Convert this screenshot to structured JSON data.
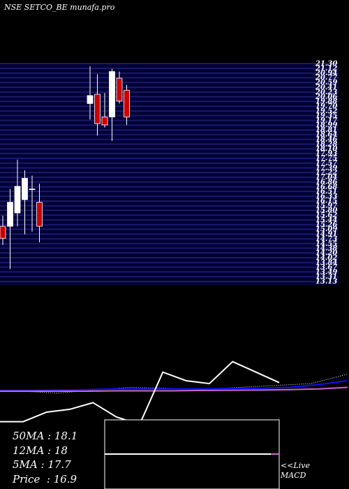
{
  "title": "NSE SETCO_BE munafa.pro",
  "chart_data": {
    "type": "candlestick",
    "price_axis": {
      "ylim": [
        13.0,
        21.3
      ],
      "tick_labels": [
        "21.30",
        "21.12",
        "20.94",
        "20.77",
        "20.59",
        "20.41",
        "20.23",
        "20.06",
        "19.88",
        "19.70",
        "19.52",
        "19.35",
        "19.17",
        "18.99",
        "18.81",
        "18.64",
        "18.46",
        "18.28",
        "18.10",
        "17.93",
        "17.75",
        "17.57",
        "17.39",
        "17.22",
        "17.04",
        "16.86",
        "16.68",
        "16.51",
        "16.33",
        "16.15",
        "15.97",
        "15.80",
        "15.62",
        "15.44",
        "15.26",
        "15.09",
        "14.91",
        "14.73",
        "14.55",
        "14.38",
        "14.20",
        "14.02",
        "13.84",
        "13.67",
        "13.49",
        "13.31",
        "13.13"
      ],
      "grid": true
    },
    "candles": [
      {
        "open": 15.2,
        "high": 15.6,
        "low": 14.5,
        "close": 14.75
      },
      {
        "open": 15.2,
        "high": 16.6,
        "low": 13.6,
        "close": 16.1
      },
      {
        "open": 15.7,
        "high": 17.7,
        "low": 15.2,
        "close": 16.7
      },
      {
        "open": 16.2,
        "high": 17.3,
        "low": 14.9,
        "close": 17.0
      },
      {
        "open": 16.6,
        "high": 17.1,
        "low": 15.0,
        "close": 16.6
      },
      {
        "open": 16.1,
        "high": 16.8,
        "low": 14.6,
        "close": 15.2
      },
      {
        "open": 19.8,
        "high": 21.2,
        "low": 19.2,
        "close": 20.1
      },
      {
        "open": 20.15,
        "high": 20.9,
        "low": 18.6,
        "close": 19.05
      },
      {
        "open": 19.3,
        "high": 20.2,
        "low": 18.9,
        "close": 19.0
      },
      {
        "open": 19.3,
        "high": 21.1,
        "low": 18.4,
        "close": 21.0
      },
      {
        "open": 20.75,
        "high": 21.0,
        "low": 19.8,
        "close": 19.9
      },
      {
        "open": 20.3,
        "high": 20.5,
        "low": 19.0,
        "close": 19.3
      }
    ],
    "moving_averages": [
      {
        "label": "50MA",
        "value": "18.1"
      },
      {
        "label": "12MA",
        "value": "18"
      },
      {
        "label": "5MA",
        "value": "17.7"
      },
      {
        "label": "Price",
        "value": "16.9"
      }
    ],
    "indicator_lines": {
      "white": [
        -1.6,
        -1.6,
        -1.1,
        -0.95,
        -0.6,
        -1.35,
        -1.75,
        1.0,
        0.55,
        0.4,
        1.55,
        1.0,
        0.45
      ],
      "white_dotted": [
        0.0,
        -0.1,
        0.05,
        0.2,
        0.15,
        0.1,
        0.2,
        0.3,
        0.4,
        0.9
      ],
      "blue": [
        0.05,
        0.05,
        0.06,
        0.08,
        0.12,
        0.12,
        0.12,
        0.12,
        0.15,
        0.15,
        0.2,
        0.35,
        0.55
      ],
      "purple": [
        0.0,
        0.0,
        0.0,
        0.0,
        0.02,
        0.02,
        0.02,
        0.04,
        0.05,
        0.06,
        0.08,
        0.12,
        0.2
      ]
    },
    "macd": {
      "label_prefix": "<<Live",
      "label": "MACD",
      "value": 0.0
    }
  },
  "colors": {
    "background": "#000000",
    "grid": "#1a1a70",
    "grid_panel": "#000033",
    "up": "#ffffff",
    "down": "#cc0000",
    "blue_line": "#1010ff",
    "purple_line": "#cc66cc",
    "text": "#ffffff"
  }
}
